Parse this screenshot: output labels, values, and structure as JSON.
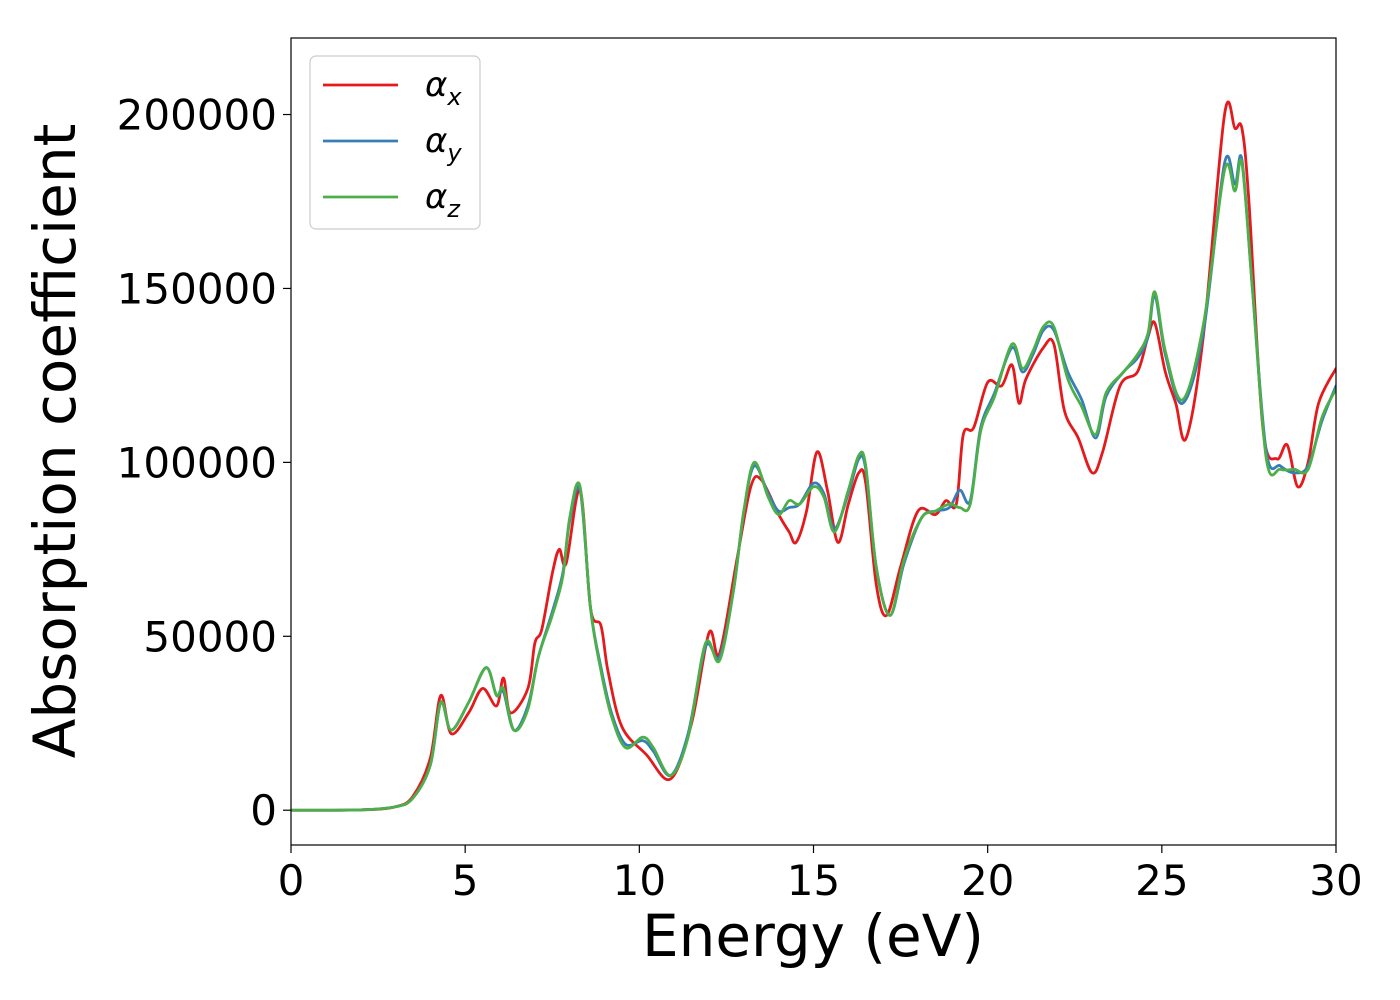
{
  "chart_data": {
    "type": "line",
    "title": "",
    "xlabel": "Energy (eV)",
    "ylabel": "Absorption coefficient",
    "xlim": [
      0,
      30
    ],
    "ylim": [
      -10000,
      222000
    ],
    "x_ticks": [
      0,
      5,
      10,
      15,
      20,
      25,
      30
    ],
    "y_ticks": [
      0,
      50000,
      100000,
      150000,
      200000
    ],
    "grid": false,
    "legend_position": "top-left",
    "series": [
      {
        "name": "αx",
        "base": "α",
        "sub": "x",
        "color": "#e41a1c",
        "points": [
          [
            0,
            0
          ],
          [
            2,
            100
          ],
          [
            3,
            1000
          ],
          [
            3.5,
            4000
          ],
          [
            4,
            15000
          ],
          [
            4.3,
            33000
          ],
          [
            4.6,
            22000
          ],
          [
            5.1,
            28000
          ],
          [
            5.5,
            35000
          ],
          [
            5.9,
            30000
          ],
          [
            6.1,
            38000
          ],
          [
            6.3,
            28000
          ],
          [
            6.8,
            35000
          ],
          [
            7,
            48000
          ],
          [
            7.2,
            52000
          ],
          [
            7.5,
            68000
          ],
          [
            7.7,
            75000
          ],
          [
            7.9,
            71000
          ],
          [
            8.3,
            92000
          ],
          [
            8.6,
            58000
          ],
          [
            8.9,
            53000
          ],
          [
            9.1,
            40000
          ],
          [
            9.5,
            24000
          ],
          [
            10.2,
            16000
          ],
          [
            10.9,
            9000
          ],
          [
            11.5,
            25000
          ],
          [
            12,
            51000
          ],
          [
            12.3,
            45000
          ],
          [
            12.8,
            72000
          ],
          [
            13.2,
            93000
          ],
          [
            13.5,
            95000
          ],
          [
            14,
            85000
          ],
          [
            14.3,
            80000
          ],
          [
            14.5,
            77000
          ],
          [
            14.8,
            86000
          ],
          [
            15.1,
            103000
          ],
          [
            15.4,
            92000
          ],
          [
            15.7,
            77000
          ],
          [
            16,
            88000
          ],
          [
            16.3,
            97000
          ],
          [
            16.5,
            94000
          ],
          [
            16.8,
            65000
          ],
          [
            17.1,
            56000
          ],
          [
            17.5,
            70000
          ],
          [
            18,
            86000
          ],
          [
            18.5,
            85000
          ],
          [
            18.8,
            89000
          ],
          [
            19.1,
            88000
          ],
          [
            19.3,
            108000
          ],
          [
            19.6,
            110000
          ],
          [
            20,
            123000
          ],
          [
            20.4,
            122000
          ],
          [
            20.7,
            128000
          ],
          [
            20.9,
            117000
          ],
          [
            21.1,
            124000
          ],
          [
            21.6,
            133000
          ],
          [
            21.9,
            134000
          ],
          [
            22.2,
            115000
          ],
          [
            22.6,
            107000
          ],
          [
            23,
            97000
          ],
          [
            23.3,
            103000
          ],
          [
            23.8,
            122000
          ],
          [
            24.3,
            126000
          ],
          [
            24.6,
            136000
          ],
          [
            24.8,
            140000
          ],
          [
            25.1,
            126000
          ],
          [
            25.4,
            117000
          ],
          [
            25.7,
            107000
          ],
          [
            26.2,
            137000
          ],
          [
            26.8,
            200000
          ],
          [
            27.1,
            196000
          ],
          [
            27.3,
            196000
          ],
          [
            27.5,
            175000
          ],
          [
            27.9,
            110000
          ],
          [
            28.3,
            101000
          ],
          [
            28.6,
            105000
          ],
          [
            28.9,
            93000
          ],
          [
            29.2,
            100000
          ],
          [
            29.5,
            117000
          ],
          [
            30,
            127000
          ]
        ]
      },
      {
        "name": "αy",
        "base": "α",
        "sub": "y",
        "color": "#377eb8",
        "points": [
          [
            0,
            0
          ],
          [
            2,
            100
          ],
          [
            3,
            1000
          ],
          [
            3.5,
            3500
          ],
          [
            4,
            13000
          ],
          [
            4.3,
            31000
          ],
          [
            4.6,
            23000
          ],
          [
            5.1,
            31000
          ],
          [
            5.6,
            41000
          ],
          [
            5.9,
            33000
          ],
          [
            6.1,
            34000
          ],
          [
            6.4,
            23000
          ],
          [
            6.8,
            30000
          ],
          [
            7.1,
            44000
          ],
          [
            7.5,
            57000
          ],
          [
            7.8,
            68000
          ],
          [
            8,
            83000
          ],
          [
            8.3,
            92000
          ],
          [
            8.6,
            58000
          ],
          [
            8.9,
            41000
          ],
          [
            9.2,
            28000
          ],
          [
            9.6,
            19000
          ],
          [
            10.1,
            20000
          ],
          [
            10.4,
            17000
          ],
          [
            10.9,
            10000
          ],
          [
            11.4,
            22000
          ],
          [
            11.9,
            47000
          ],
          [
            12.3,
            44000
          ],
          [
            12.7,
            63000
          ],
          [
            13,
            86000
          ],
          [
            13.3,
            99000
          ],
          [
            13.7,
            91000
          ],
          [
            14,
            86000
          ],
          [
            14.3,
            87000
          ],
          [
            14.6,
            88000
          ],
          [
            15,
            94000
          ],
          [
            15.3,
            91000
          ],
          [
            15.6,
            81000
          ],
          [
            16,
            91000
          ],
          [
            16.3,
            101000
          ],
          [
            16.5,
            98000
          ],
          [
            16.8,
            70000
          ],
          [
            17.2,
            56000
          ],
          [
            17.6,
            71000
          ],
          [
            18.1,
            84000
          ],
          [
            18.5,
            86000
          ],
          [
            18.9,
            87000
          ],
          [
            19.2,
            92000
          ],
          [
            19.5,
            89000
          ],
          [
            19.8,
            110000
          ],
          [
            20.2,
            120000
          ],
          [
            20.7,
            133000
          ],
          [
            21,
            126000
          ],
          [
            21.3,
            131000
          ],
          [
            21.6,
            138000
          ],
          [
            21.9,
            138000
          ],
          [
            22.3,
            126000
          ],
          [
            22.7,
            118000
          ],
          [
            23.1,
            107000
          ],
          [
            23.4,
            119000
          ],
          [
            23.9,
            126000
          ],
          [
            24.3,
            130000
          ],
          [
            24.6,
            136000
          ],
          [
            24.8,
            148000
          ],
          [
            25.1,
            131000
          ],
          [
            25.6,
            117000
          ],
          [
            26.2,
            138000
          ],
          [
            26.8,
            186000
          ],
          [
            27.1,
            180000
          ],
          [
            27.3,
            187000
          ],
          [
            27.6,
            150000
          ],
          [
            28,
            103000
          ],
          [
            28.4,
            99000
          ],
          [
            28.8,
            97000
          ],
          [
            29.2,
            99000
          ],
          [
            29.6,
            112000
          ],
          [
            30,
            122000
          ]
        ]
      },
      {
        "name": "αz",
        "base": "α",
        "sub": "z",
        "color": "#4daf4a",
        "points": [
          [
            0,
            0
          ],
          [
            2,
            100
          ],
          [
            3,
            1000
          ],
          [
            3.5,
            3500
          ],
          [
            4,
            13000
          ],
          [
            4.3,
            31000
          ],
          [
            4.6,
            23000
          ],
          [
            5.1,
            31000
          ],
          [
            5.6,
            41000
          ],
          [
            5.9,
            33000
          ],
          [
            6.1,
            35000
          ],
          [
            6.4,
            23000
          ],
          [
            6.8,
            29000
          ],
          [
            7.1,
            44000
          ],
          [
            7.5,
            56000
          ],
          [
            7.8,
            67000
          ],
          [
            8,
            84000
          ],
          [
            8.3,
            93000
          ],
          [
            8.6,
            58000
          ],
          [
            8.9,
            40000
          ],
          [
            9.2,
            27000
          ],
          [
            9.6,
            18000
          ],
          [
            10.1,
            21000
          ],
          [
            10.4,
            18000
          ],
          [
            10.9,
            10000
          ],
          [
            11.4,
            21000
          ],
          [
            11.9,
            48000
          ],
          [
            12.3,
            43000
          ],
          [
            12.7,
            63000
          ],
          [
            13,
            86000
          ],
          [
            13.3,
            100000
          ],
          [
            13.7,
            90000
          ],
          [
            14,
            85000
          ],
          [
            14.3,
            89000
          ],
          [
            14.6,
            88000
          ],
          [
            15,
            93000
          ],
          [
            15.3,
            90000
          ],
          [
            15.6,
            80000
          ],
          [
            16,
            92000
          ],
          [
            16.3,
            102000
          ],
          [
            16.5,
            99000
          ],
          [
            16.8,
            70000
          ],
          [
            17.2,
            56000
          ],
          [
            17.6,
            72000
          ],
          [
            18.1,
            84000
          ],
          [
            18.5,
            86000
          ],
          [
            18.9,
            88000
          ],
          [
            19.2,
            87000
          ],
          [
            19.5,
            88000
          ],
          [
            19.8,
            109000
          ],
          [
            20.2,
            119000
          ],
          [
            20.7,
            134000
          ],
          [
            21,
            127000
          ],
          [
            21.3,
            132000
          ],
          [
            21.6,
            139000
          ],
          [
            21.9,
            139000
          ],
          [
            22.3,
            124000
          ],
          [
            22.7,
            116000
          ],
          [
            23.1,
            108000
          ],
          [
            23.4,
            120000
          ],
          [
            23.9,
            126000
          ],
          [
            24.3,
            131000
          ],
          [
            24.6,
            137000
          ],
          [
            24.8,
            149000
          ],
          [
            25.1,
            132000
          ],
          [
            25.6,
            118000
          ],
          [
            26.2,
            140000
          ],
          [
            26.8,
            184000
          ],
          [
            27.1,
            178000
          ],
          [
            27.3,
            186000
          ],
          [
            27.6,
            150000
          ],
          [
            28,
            101000
          ],
          [
            28.4,
            98000
          ],
          [
            28.8,
            98000
          ],
          [
            29.2,
            98000
          ],
          [
            29.6,
            113000
          ],
          [
            30,
            121000
          ]
        ]
      }
    ]
  }
}
